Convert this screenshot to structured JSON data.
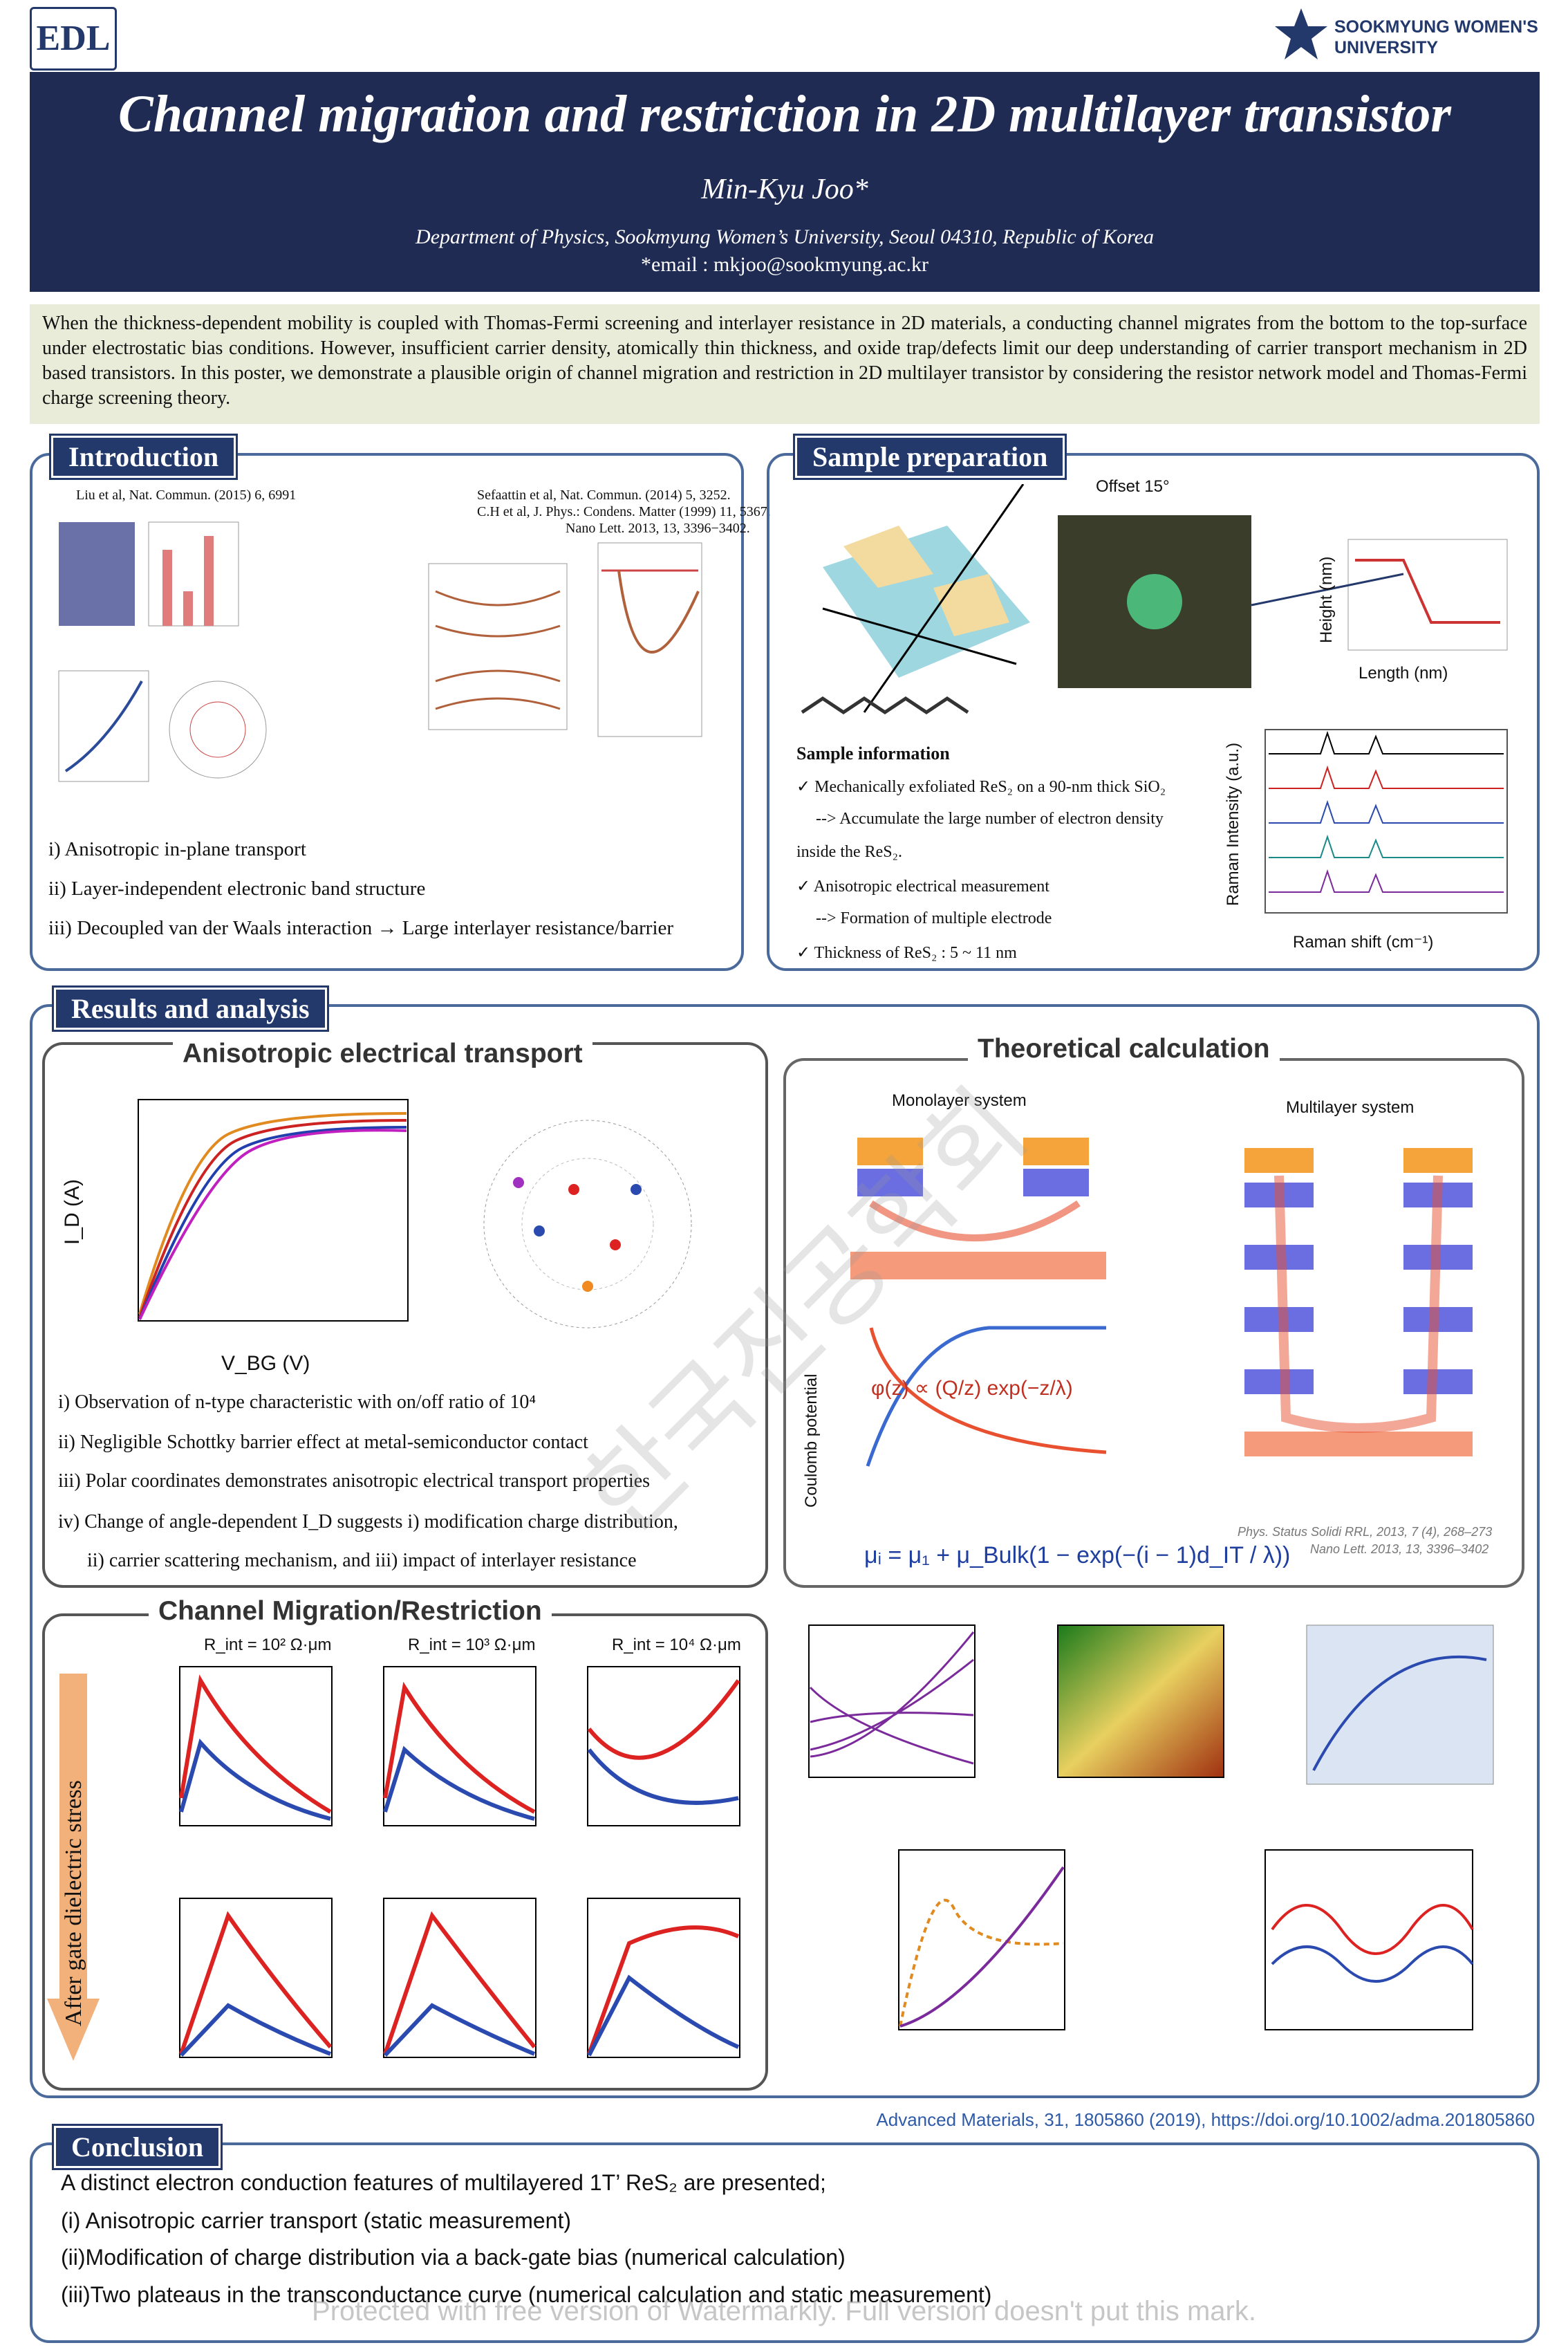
{
  "header": {
    "lab_logo": "EDL",
    "university": "SOOKMYUNG WOMEN'S UNIVERSITY",
    "title": "Channel migration and restriction in 2D multilayer transistor",
    "author": "Min-Kyu Joo*",
    "affiliation": "Department of Physics, Sookmyung Women’s University, Seoul 04310, Republic of Korea",
    "email": "*email : mkjoo@sookmyung.ac.kr"
  },
  "abstract": "When the thickness-dependent mobility is coupled with Thomas-Fermi screening and interlayer resistance in 2D materials, a conducting channel migrates from the bottom to the top-surface under electrostatic bias conditions. However, insufficient carrier density, atomically thin thickness, and oxide trap/defects limit our deep understanding of carrier transport mechanism in 2D based transistors. In this poster, we demonstrate a plausible origin of channel migration and restriction in 2D multilayer transistor by considering the resistor network model and Thomas-Fermi charge screening theory.",
  "introduction": {
    "heading": "Introduction",
    "refs": [
      "Liu et al, Nat. Commun. (2015) 6, 6991",
      "Sefaattin et al, Nat. Commun. (2014) 5, 3252.",
      "C.H et al, J. Phys.: Condens. Matter (1999) 11, 5367.",
      "Nano Lett. 2013, 13, 3396−3402."
    ],
    "items": [
      "i)  Anisotropic in-plane transport",
      "ii)  Layer-independent electronic band structure",
      "iii) Decoupled van der Waals interaction → Large interlayer resistance/barrier"
    ]
  },
  "sample": {
    "heading": "Sample preparation",
    "offset": "Offset 15°",
    "info_title": "Sample information",
    "items": [
      "✓  Mechanically exfoliated ReS₂ on a 90-nm thick SiO₂",
      "--> Accumulate the large number of electron density",
      "inside the ReS₂.",
      "✓  Anisotropic electrical measurement",
      "--> Formation of multiple electrode",
      "✓  Thickness of ReS₂ : 5 ~ 11 nm"
    ],
    "height_x": "Length (nm)",
    "height_y": "Height (nm)",
    "raman_x": "Raman shift (cm⁻¹)",
    "raman_y": "Raman Intensity (a.u.)"
  },
  "results": {
    "heading": "Results and analysis",
    "anisotropic": {
      "heading": "Anisotropic electrical transport",
      "x_label": "V_BG (V)",
      "y_label": "I_D (A)",
      "items": [
        "i)   Observation of n-type characteristic with on/off ratio of 10⁴",
        "ii)  Negligible Schottky barrier effect at metal-semiconductor contact",
        "iii) Polar coordinates demonstrates anisotropic electrical transport properties",
        "iv) Change of angle-dependent I_D suggests i) modification charge distribution,",
        "ii) carrier scattering mechanism, and iii) impact of interlayer resistance"
      ]
    },
    "channel": {
      "heading": "Channel Migration/Restriction",
      "side_label": "After gate dielectric stress",
      "panel_titles": [
        "R_int = 10² Ω·μm",
        "R_int = 10³ Ω·μm",
        "R_int = 10⁴ Ω·μm"
      ]
    },
    "theory": {
      "heading": "Theoretical calculation",
      "monolayer": "Monolayer system",
      "multilayer": "Multilayer system",
      "equation_1": "φ(z) ∝ (Q/z) exp(−z/λ)",
      "equation_2": "μᵢ = μ₁ + μ_Bulk(1 − exp(−(i − 1)d_IT / λ))",
      "y_label": "Coulomb potential",
      "refs": [
        "Phys. Status Solidi RRL, 2013, 7 (4), 268–273",
        "Nano Lett. 2013, 13, 3396–3402"
      ]
    },
    "citation": "Advanced Materials, 31, 1805860 (2019), https://doi.org/10.1002/adma.201805860"
  },
  "conclusion": {
    "heading": "Conclusion",
    "lines": [
      "A distinct electron conduction features of multilayered 1T’ ReS₂ are presented;",
      "(i) Anisotropic carrier transport (static measurement)",
      "(ii)Modification of charge distribution via a back-gate bias (numerical calculation)",
      "(iii)Two plateaus in the transconductance curve (numerical calculation and static measurement)"
    ]
  },
  "overlay_mark": "한국진공학회",
  "watermark": "Protected with free version of Watermarkly. Full version doesn't put this mark."
}
